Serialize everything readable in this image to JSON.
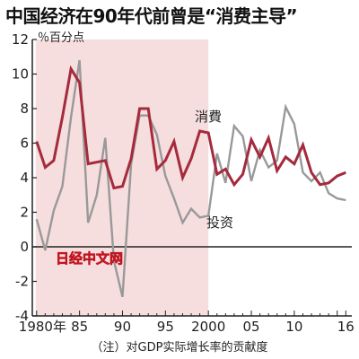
{
  "title": "中国经济在90年代前曾是“消费主导”",
  "footnote": "（注）对GDP实际增长率的贡献度",
  "watermark": "日经中文网",
  "colors": {
    "consumption": "#a52a3c",
    "investment": "#999999",
    "shade": "#f6dede",
    "axis": "#222222"
  },
  "chart_data": {
    "type": "line",
    "title": "中国经济在90年代前曾是“消费主导”",
    "ylabel": "％百分点",
    "xlabel": "",
    "x": [
      1980,
      1981,
      1982,
      1983,
      1984,
      1985,
      1986,
      1987,
      1988,
      1989,
      1990,
      1991,
      1992,
      1993,
      1994,
      1995,
      1996,
      1997,
      1998,
      1999,
      2000,
      2001,
      2002,
      2003,
      2004,
      2005,
      2006,
      2007,
      2008,
      2009,
      2010,
      2011,
      2012,
      2013,
      2014,
      2015,
      2016
    ],
    "xlim": [
      1979.5,
      2016.7
    ],
    "ylim": [
      -4,
      12
    ],
    "yticks": [
      -4,
      -2,
      0,
      2,
      4,
      6,
      8,
      10,
      12
    ],
    "xtick_labels": [
      {
        "x": 1980,
        "label": "1980年"
      },
      {
        "x": 1985,
        "label": "85"
      },
      {
        "x": 1990,
        "label": "90"
      },
      {
        "x": 1995,
        "label": "95"
      },
      {
        "x": 2000,
        "label": "2000"
      },
      {
        "x": 2005,
        "label": "05"
      },
      {
        "x": 2010,
        "label": "10"
      },
      {
        "x": 2016,
        "label": "16"
      }
    ],
    "shaded_range": [
      1980,
      2000
    ],
    "grid": false,
    "series": [
      {
        "name": "消費",
        "values": [
          6.1,
          4.6,
          5.0,
          7.5,
          10.3,
          9.5,
          4.8,
          4.9,
          5.0,
          3.4,
          3.5,
          5.1,
          8.0,
          8.0,
          4.5,
          5.0,
          6.1,
          4.0,
          5.1,
          6.7,
          6.6,
          4.2,
          4.5,
          3.6,
          4.2,
          6.2,
          5.2,
          6.3,
          4.4,
          5.2,
          4.8,
          5.9,
          4.3,
          3.6,
          3.7,
          4.1,
          4.3
        ]
      },
      {
        "name": "投资",
        "values": [
          1.6,
          -0.2,
          2.1,
          3.5,
          7.5,
          10.8,
          1.4,
          3.0,
          6.3,
          -0.8,
          -2.9,
          4.8,
          7.6,
          7.6,
          6.5,
          4.1,
          2.8,
          1.4,
          2.2,
          1.7,
          1.8,
          5.4,
          3.7,
          7.0,
          6.4,
          3.8,
          5.6,
          4.6,
          5.0,
          8.1,
          7.1,
          4.3,
          3.8,
          4.3,
          3.1,
          2.8,
          2.7
        ]
      }
    ]
  }
}
